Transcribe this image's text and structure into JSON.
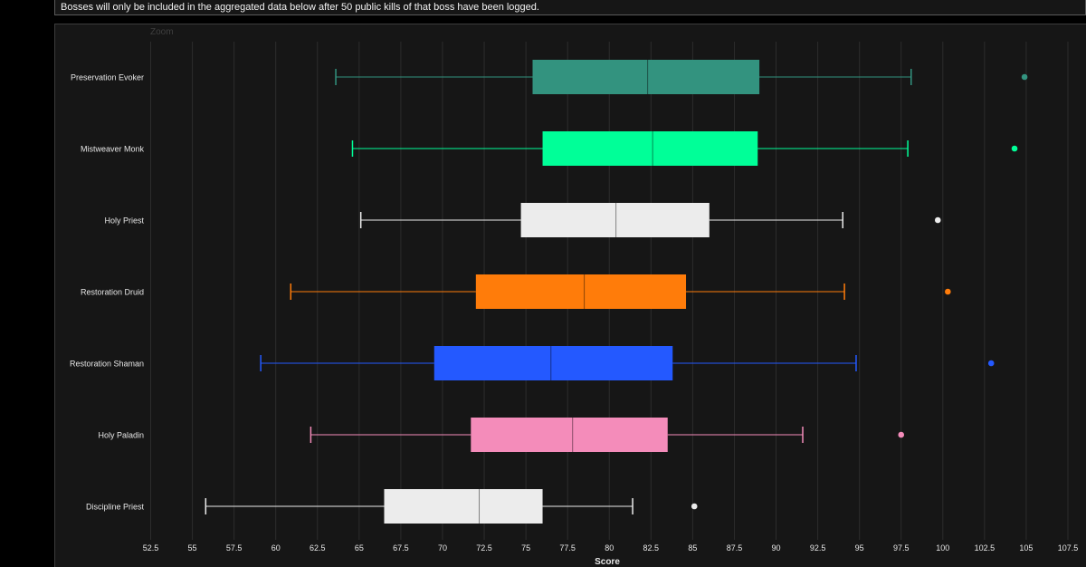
{
  "notice": {
    "text": "Bosses will only be included in the aggregated data below after 50 public kills of that boss have been logged."
  },
  "zoom_label": "Zoom",
  "colors": {
    "page_background": "#000000",
    "plot_background": "#161616",
    "grid": "#2c2c2c",
    "text": "#e6e6e6"
  },
  "chart_data": {
    "type": "boxplot",
    "orientation": "horizontal",
    "title": "",
    "xlabel": "Score",
    "ylabel": "",
    "xlim": [
      52.5,
      107.5
    ],
    "x_ticks": [
      "52.5",
      "55",
      "57.5",
      "60",
      "62.5",
      "65",
      "67.5",
      "70",
      "72.5",
      "75",
      "77.5",
      "80",
      "82.5",
      "85",
      "87.5",
      "90",
      "92.5",
      "95",
      "97.5",
      "100",
      "102.5",
      "105",
      "107.5"
    ],
    "grid": "vertical",
    "categories": [
      "Preservation Evoker",
      "Mistweaver Monk",
      "Holy Priest",
      "Restoration Druid",
      "Restoration Shaman",
      "Holy Paladin",
      "Discipline Priest"
    ],
    "series": [
      {
        "category": "Preservation Evoker",
        "color": "#33937f",
        "min": 63.6,
        "q1": 75.4,
        "median": 82.3,
        "q3": 89.0,
        "max": 98.1,
        "outliers": [
          104.9
        ]
      },
      {
        "category": "Mistweaver Monk",
        "color": "#00ff98",
        "min": 64.6,
        "q1": 76.0,
        "median": 82.6,
        "q3": 88.9,
        "max": 97.9,
        "outliers": [
          104.3
        ]
      },
      {
        "category": "Holy Priest",
        "color": "#ececec",
        "min": 65.1,
        "q1": 74.7,
        "median": 80.4,
        "q3": 86.0,
        "max": 94.0,
        "outliers": [
          99.7
        ]
      },
      {
        "category": "Restoration Druid",
        "color": "#ff7c0a",
        "min": 60.9,
        "q1": 72.0,
        "median": 78.5,
        "q3": 84.6,
        "max": 94.1,
        "outliers": [
          100.3
        ]
      },
      {
        "category": "Restoration Shaman",
        "color": "#2459ff",
        "min": 59.1,
        "q1": 69.5,
        "median": 76.5,
        "q3": 83.8,
        "max": 94.8,
        "outliers": [
          102.9
        ]
      },
      {
        "category": "Holy Paladin",
        "color": "#f48cba",
        "min": 62.1,
        "q1": 71.7,
        "median": 77.8,
        "q3": 83.5,
        "max": 91.6,
        "outliers": [
          97.5
        ]
      },
      {
        "category": "Discipline Priest",
        "color": "#ececec",
        "min": 55.8,
        "q1": 66.5,
        "median": 72.2,
        "q3": 76.0,
        "max": 81.4,
        "outliers": [
          85.1
        ]
      }
    ]
  }
}
